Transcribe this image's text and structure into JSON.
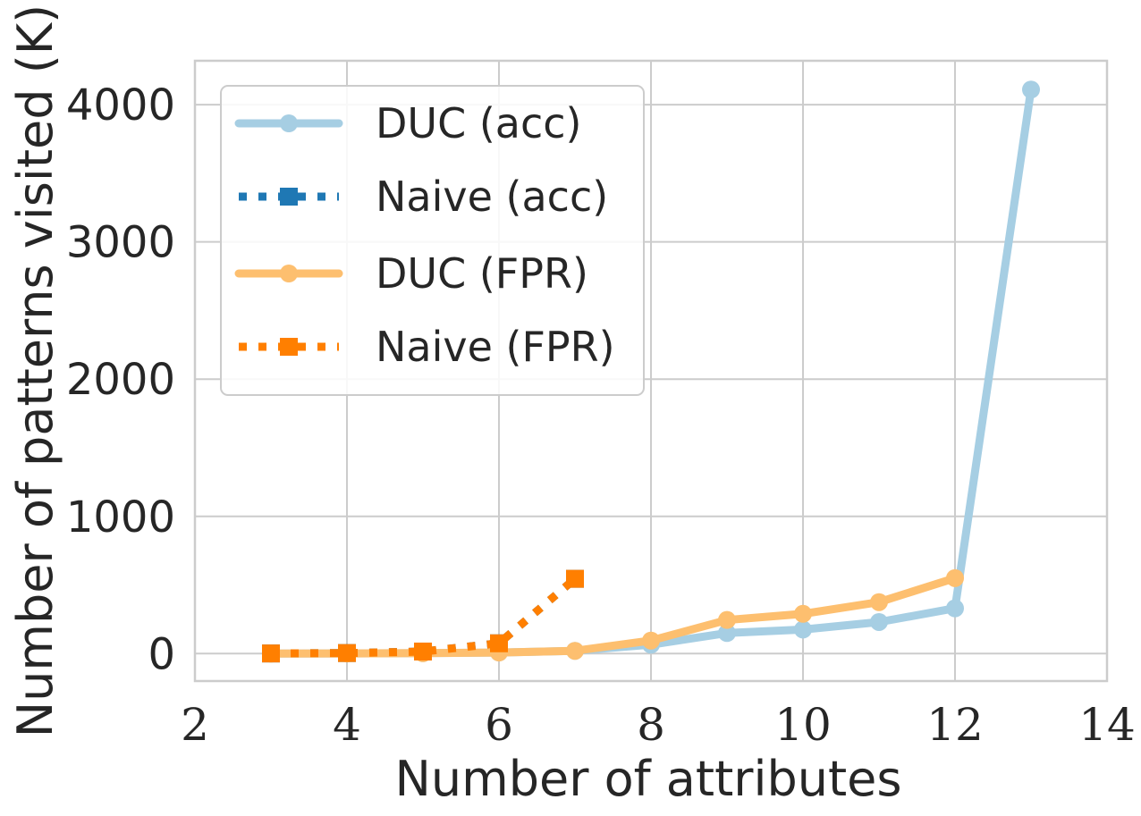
{
  "chart_data": {
    "type": "line",
    "xlabel": "Number of attributes",
    "ylabel": "Number of patterns visited (K)",
    "xlim": [
      2,
      14
    ],
    "ylim": [
      -200,
      4320
    ],
    "xticks": [
      2,
      4,
      6,
      8,
      10,
      12,
      14
    ],
    "yticks": [
      0,
      1000,
      2000,
      3000,
      4000
    ],
    "grid": true,
    "legend_position": "top-left",
    "series": [
      {
        "name": "DUC (acc)",
        "color": "#a6cee3",
        "style": "solid",
        "marker": "circle",
        "x": [
          3,
          4,
          5,
          6,
          7,
          8,
          9,
          10,
          11,
          12,
          13
        ],
        "y": [
          0.5,
          1,
          3,
          8,
          20,
          65,
          150,
          175,
          230,
          330,
          4110
        ]
      },
      {
        "name": "Naive (acc)",
        "color": "#1f78b4",
        "style": "dotted",
        "marker": "square",
        "x": [
          3,
          4,
          5,
          6,
          7
        ],
        "y": [
          1,
          4,
          15,
          75,
          545
        ]
      },
      {
        "name": "DUC (FPR)",
        "color": "#fdbf6f",
        "style": "solid",
        "marker": "circle",
        "x": [
          3,
          4,
          5,
          6,
          7,
          8,
          9,
          10,
          11,
          12
        ],
        "y": [
          0.5,
          1,
          3,
          8,
          20,
          95,
          245,
          290,
          375,
          550
        ]
      },
      {
        "name": "Naive (FPR)",
        "color": "#ff7f00",
        "style": "dotted",
        "marker": "square",
        "x": [
          3,
          4,
          5,
          6,
          7
        ],
        "y": [
          1,
          4,
          15,
          75,
          545
        ]
      }
    ]
  }
}
